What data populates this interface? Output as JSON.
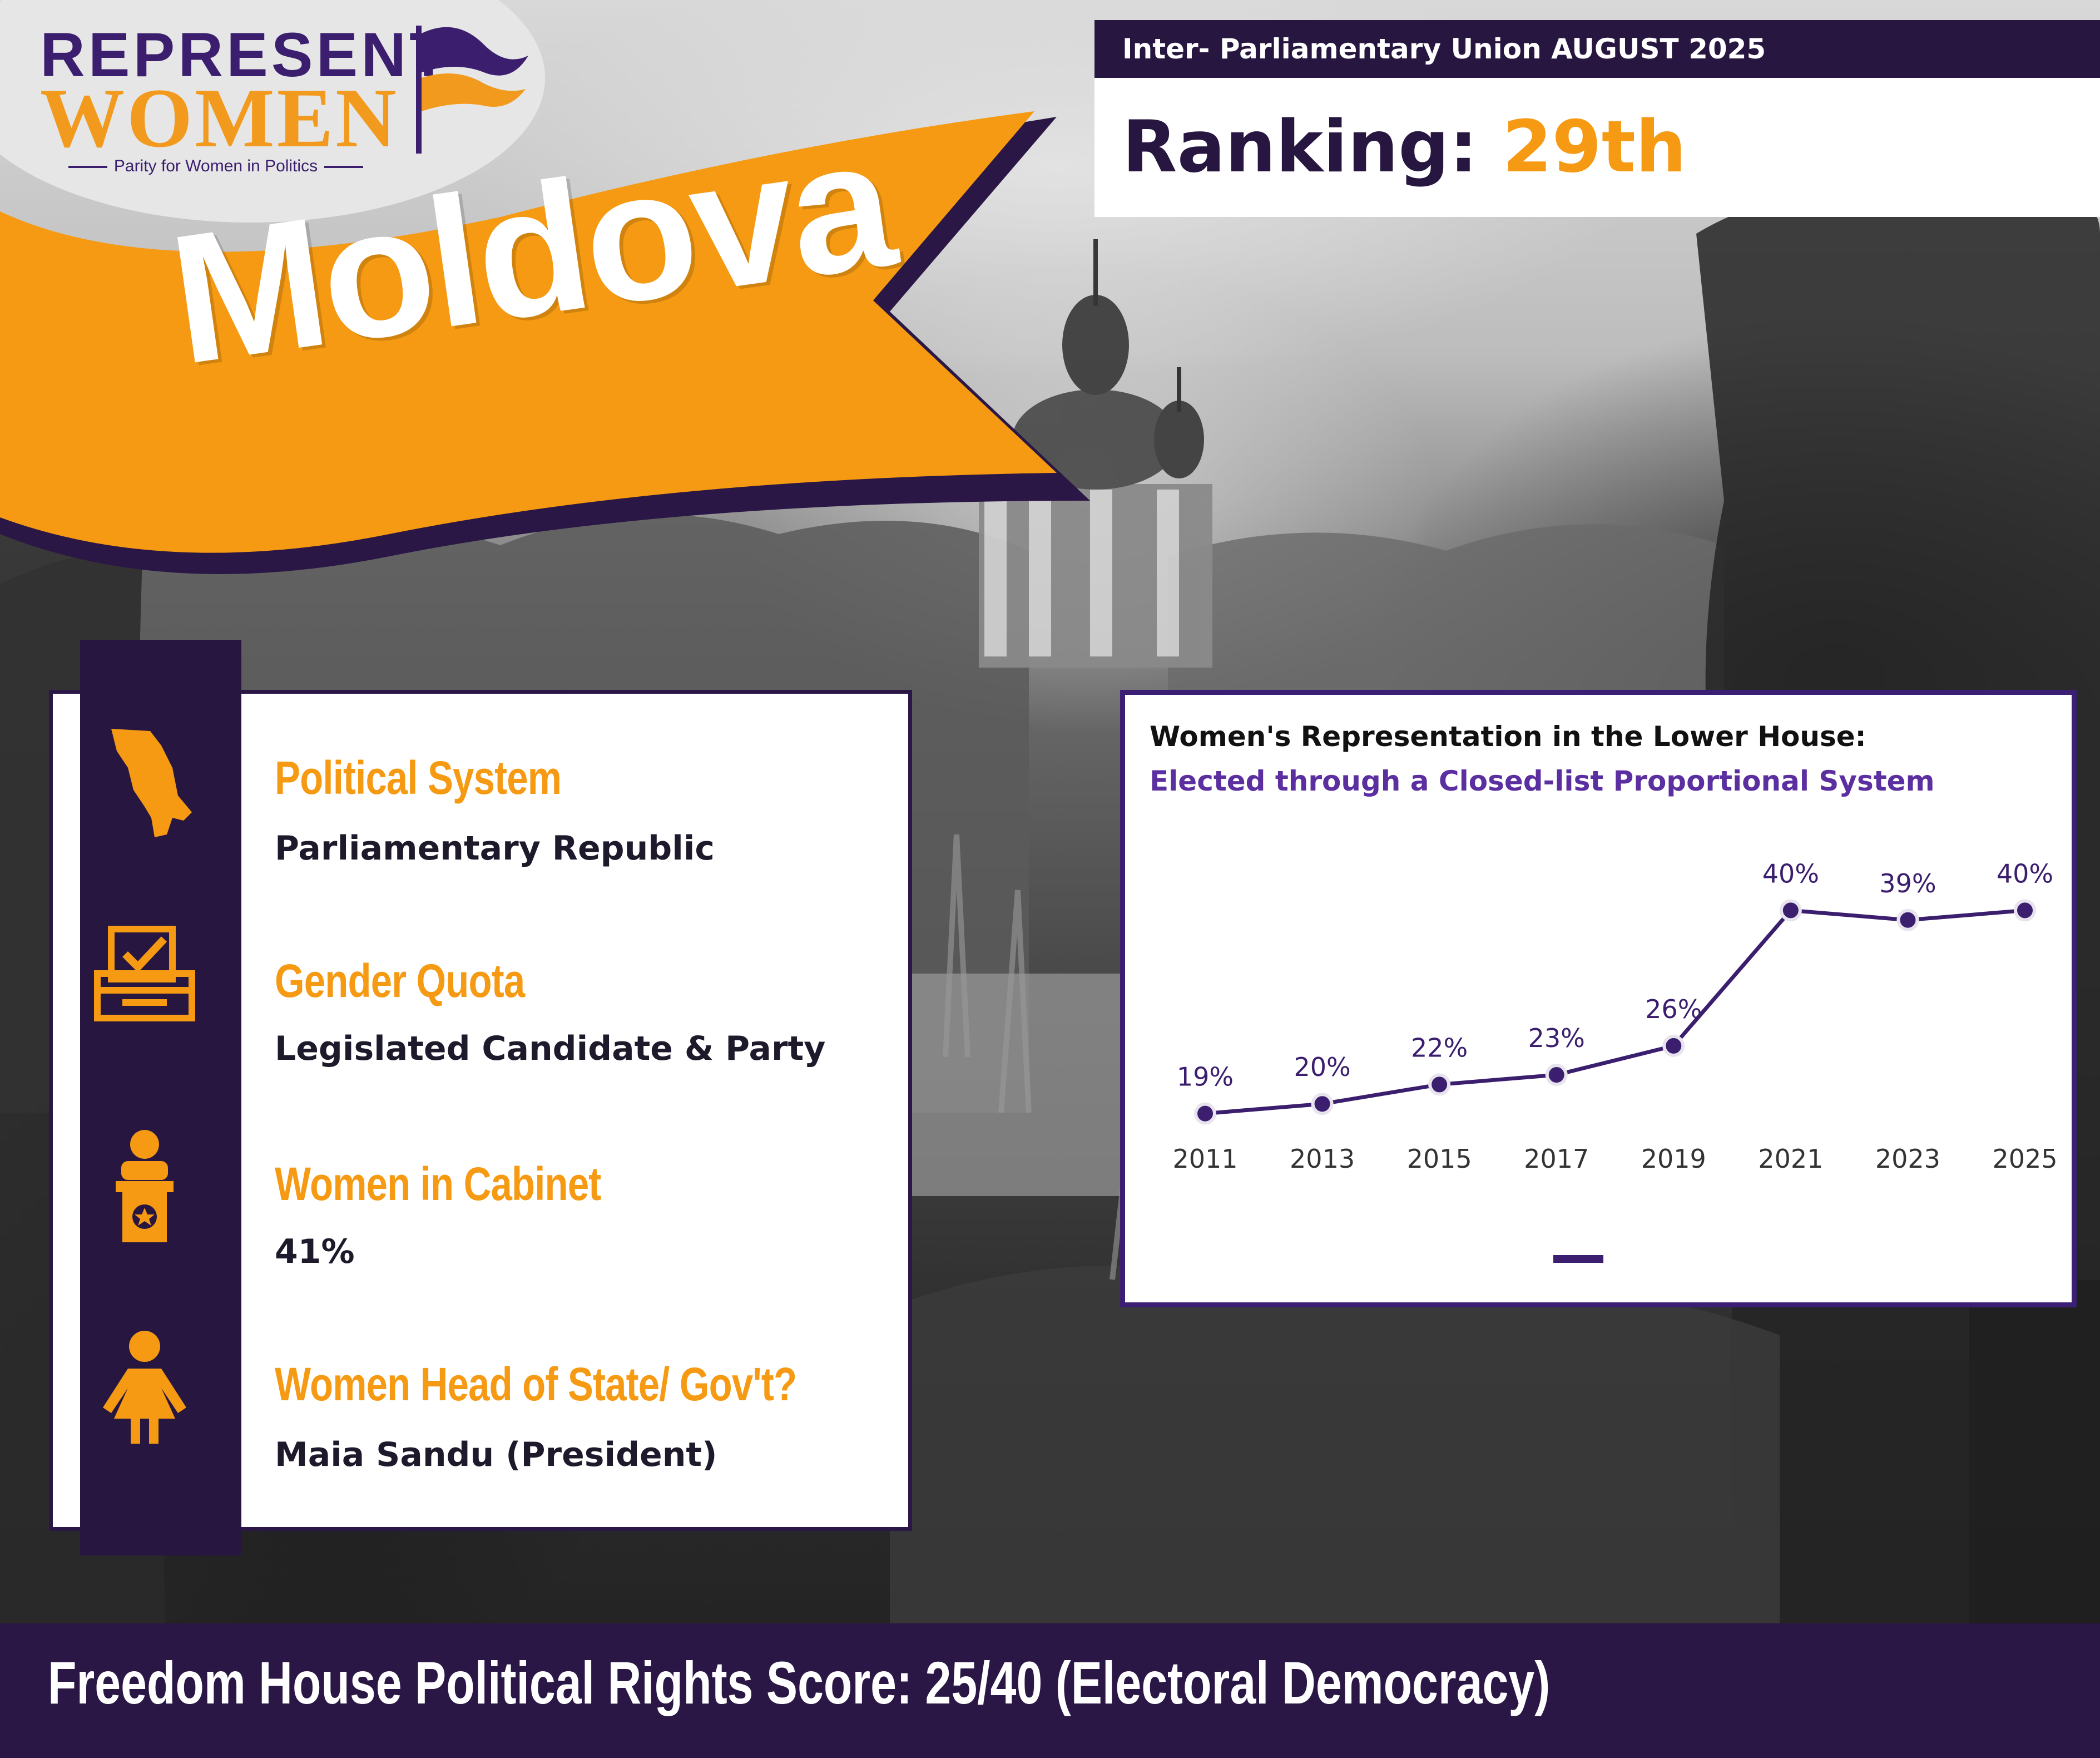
{
  "logo": {
    "line1": "REPRESENT",
    "line2": "WOMEN",
    "tagline": "Parity for Women in Politics"
  },
  "country": "Moldova",
  "ranking": {
    "source": "Inter- Parliamentary Union AUGUST 2025",
    "label": "Ranking:",
    "value": "29th"
  },
  "info": {
    "items": [
      {
        "icon": "moldova-map-icon",
        "title": "Political System",
        "value": "Parliamentary Republic"
      },
      {
        "icon": "ballot-box-icon",
        "title": "Gender Quota",
        "value": "Legislated Candidate & Party"
      },
      {
        "icon": "podium-icon",
        "title": "Women in Cabinet",
        "value": "41%"
      },
      {
        "icon": "woman-icon",
        "title": "Women Head of State/ Gov't?",
        "value": "Maia Sandu (President)"
      }
    ]
  },
  "chart_data": {
    "type": "line",
    "title": "Women's Representation in the Lower House:",
    "subtitle": "Elected through a Closed-list Proportional System",
    "categories": [
      "2011",
      "2013",
      "2015",
      "2017",
      "2019",
      "2021",
      "2023",
      "2025"
    ],
    "series": [
      {
        "values": [
          19,
          20,
          22,
          23,
          26,
          40,
          39,
          40
        ],
        "labels": [
          "19%",
          "20%",
          "22%",
          "23%",
          "26%",
          "40%",
          "39%",
          "40%"
        ]
      }
    ],
    "grid": false,
    "legend": "bottom-center",
    "colors": {
      "line": "#3b1f6e",
      "label": "#3b1f6e"
    }
  },
  "footer": {
    "text": "Freedom House Political Rights Score: 25/40 (Electoral Democracy)"
  },
  "colors": {
    "purple": "#271640",
    "orange": "#f59a12",
    "accent_purple": "#5b2fa0"
  }
}
